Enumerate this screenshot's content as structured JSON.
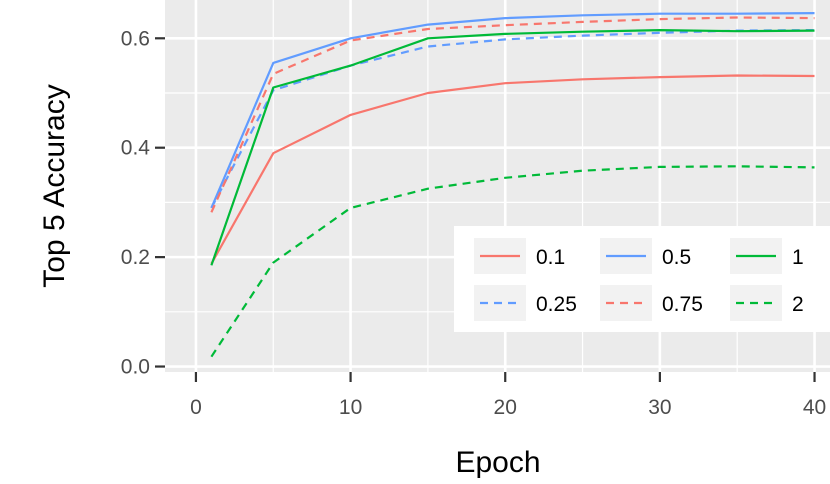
{
  "chart_data": {
    "type": "line",
    "title": "",
    "xlabel": "Epoch",
    "ylabel": "Top 5 Accuracy",
    "xlim": [
      -2,
      41
    ],
    "ylim": [
      -0.01,
      0.67
    ],
    "x_ticks": [
      0,
      10,
      20,
      30,
      40
    ],
    "y_ticks": [
      0.0,
      0.2,
      0.4,
      0.6
    ],
    "x_tick_labels": [
      "0",
      "10",
      "20",
      "30",
      "40"
    ],
    "y_tick_labels": [
      "0.0",
      "0.2",
      "0.4",
      "0.6"
    ],
    "grid": true,
    "background": "#ebebeb",
    "legend_position": "bottom-right inside",
    "legend_columns": 3,
    "x": [
      1,
      5,
      10,
      15,
      20,
      25,
      30,
      35,
      40
    ],
    "series": [
      {
        "name": "0.1",
        "color": "#f8766d",
        "dash": "solid",
        "values": [
          0.188,
          0.39,
          0.46,
          0.5,
          0.518,
          0.525,
          0.529,
          0.532,
          0.531
        ]
      },
      {
        "name": "0.25",
        "color": "#619cff",
        "dash": "dashed",
        "values": [
          0.29,
          0.505,
          0.55,
          0.585,
          0.598,
          0.605,
          0.61,
          0.614,
          0.615
        ]
      },
      {
        "name": "0.5",
        "color": "#619cff",
        "dash": "solid",
        "values": [
          0.29,
          0.555,
          0.6,
          0.625,
          0.637,
          0.642,
          0.645,
          0.645,
          0.646
        ]
      },
      {
        "name": "0.75",
        "color": "#f8766d",
        "dash": "dashed",
        "values": [
          0.282,
          0.535,
          0.596,
          0.617,
          0.624,
          0.63,
          0.635,
          0.638,
          0.637
        ]
      },
      {
        "name": "1",
        "color": "#00ba38",
        "dash": "solid",
        "values": [
          0.185,
          0.51,
          0.55,
          0.6,
          0.608,
          0.612,
          0.615,
          0.613,
          0.614
        ]
      },
      {
        "name": "2",
        "color": "#00ba38",
        "dash": "dashed",
        "values": [
          0.018,
          0.19,
          0.29,
          0.325,
          0.345,
          0.358,
          0.365,
          0.366,
          0.364
        ]
      }
    ]
  }
}
